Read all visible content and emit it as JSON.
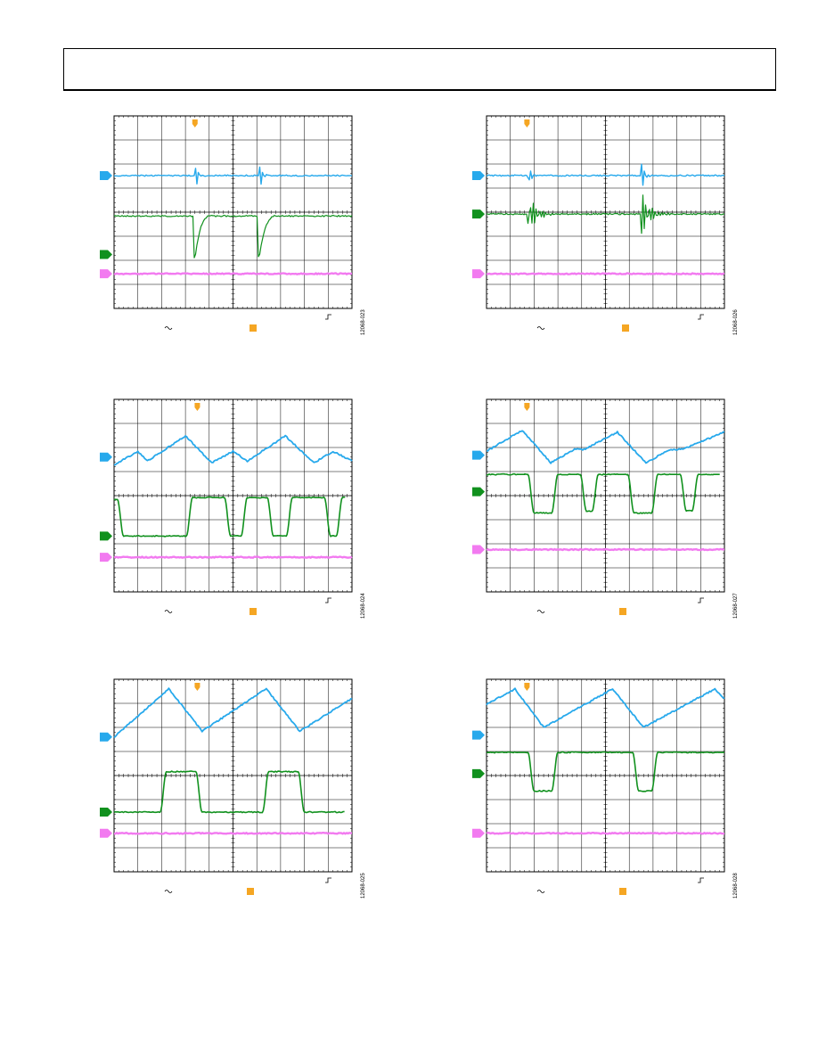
{
  "page": {
    "header_text": ""
  },
  "colors": {
    "ch1": "#27a9ec",
    "ch2": "#11911e",
    "ch3": "#f27af0",
    "trigger": "#f5a623",
    "grid": "#000000"
  },
  "scopes": [
    {
      "fig_id": "12068-023",
      "waveform": "spikes-a"
    },
    {
      "fig_id": "12068-026",
      "waveform": "ringing"
    },
    {
      "fig_id": "12068-024",
      "waveform": "triangle-fast"
    },
    {
      "fig_id": "12068-027",
      "waveform": "triangle-medium"
    },
    {
      "fig_id": "12068-025",
      "waveform": "triangle-slow-a"
    },
    {
      "fig_id": "12068-028",
      "waveform": "triangle-slow-b"
    }
  ]
}
